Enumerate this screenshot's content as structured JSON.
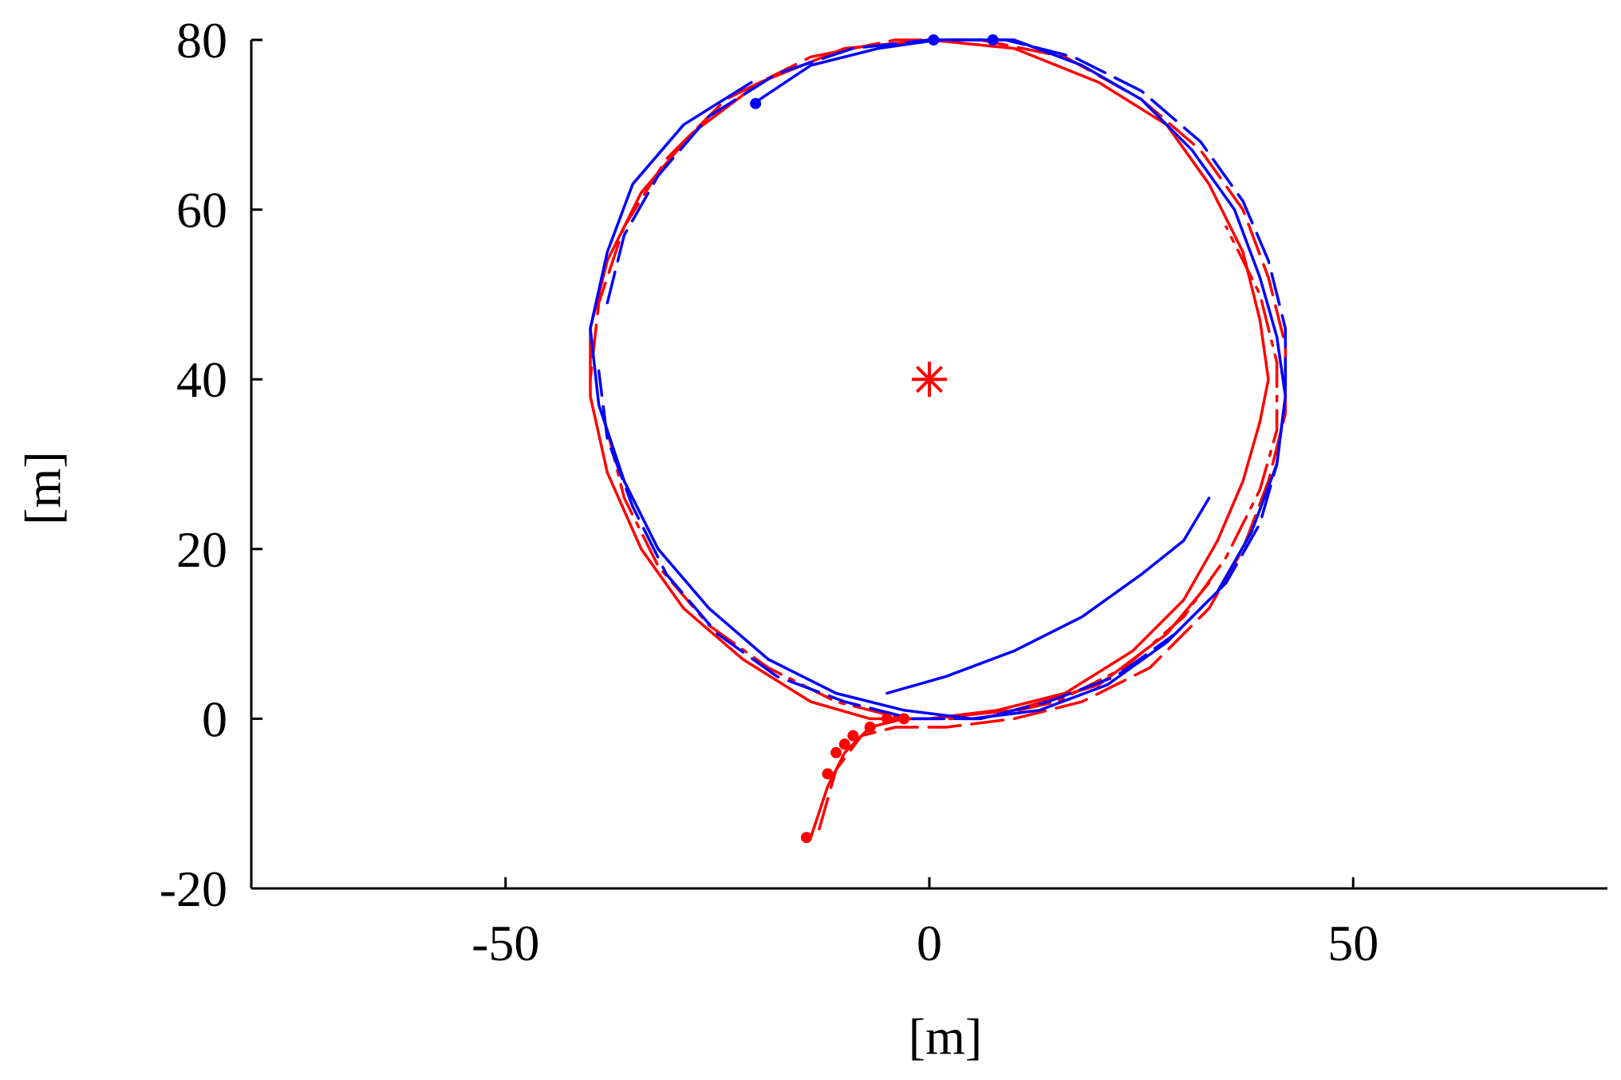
{
  "chart_data": {
    "type": "line",
    "title": "",
    "xlabel": "[m]",
    "ylabel": "[m]",
    "xlim": [
      -80,
      80
    ],
    "ylim": [
      -20,
      80
    ],
    "xticks": [
      -50,
      0,
      50
    ],
    "xtick_labels": [
      "-50",
      "0",
      "50"
    ],
    "yticks": [
      -20,
      0,
      20,
      40,
      60,
      80
    ],
    "ytick_labels": [
      "-20",
      "0",
      "20",
      "40",
      "60",
      "80"
    ],
    "grid": false,
    "legend": "none",
    "colors": {
      "red": "#ff0000",
      "blue": "#0000ff",
      "axis": "#000000"
    },
    "circle_center": [
      0,
      40
    ],
    "circle_radius": 40,
    "center_marker": {
      "x": 0,
      "y": 40,
      "marker": "asterisk",
      "color": "#ff0000"
    },
    "series": [
      {
        "color": "#ff0000",
        "style": "solid",
        "points": [
          [
            -14,
            -14
          ],
          [
            -12,
            -8
          ],
          [
            -10,
            -4
          ],
          [
            -7,
            -1
          ],
          [
            -3,
            0
          ],
          [
            0,
            0
          ],
          [
            8,
            1
          ],
          [
            16,
            3
          ],
          [
            24,
            8
          ],
          [
            30,
            14
          ],
          [
            34,
            21
          ],
          [
            37,
            28
          ],
          [
            39,
            35
          ],
          [
            40,
            40
          ],
          [
            39,
            47
          ],
          [
            37,
            55
          ],
          [
            33,
            63
          ],
          [
            28,
            70
          ],
          [
            20,
            75
          ],
          [
            10,
            79
          ],
          [
            0,
            80
          ],
          [
            -10,
            79
          ],
          [
            -20,
            75
          ],
          [
            -28,
            69
          ],
          [
            -34,
            62
          ],
          [
            -38,
            54
          ],
          [
            -40,
            46
          ],
          [
            -40,
            38
          ],
          [
            -38,
            29
          ],
          [
            -34,
            20
          ],
          [
            -29,
            13
          ],
          [
            -22,
            7
          ],
          [
            -14,
            2
          ],
          [
            -7,
            0
          ],
          [
            0,
            0
          ],
          [
            10,
            1
          ],
          [
            20,
            4
          ],
          [
            28,
            10
          ],
          [
            33,
            16
          ]
        ]
      },
      {
        "color": "#ff0000",
        "style": "dashed",
        "points": [
          [
            -13,
            -13
          ],
          [
            -11,
            -6
          ],
          [
            -8,
            -2
          ],
          [
            -4,
            -1
          ],
          [
            2,
            -1
          ],
          [
            10,
            0
          ],
          [
            18,
            2
          ],
          [
            26,
            6
          ],
          [
            33,
            13
          ],
          [
            37,
            20
          ],
          [
            40,
            28
          ],
          [
            42,
            36
          ],
          [
            42,
            44
          ],
          [
            40,
            52
          ],
          [
            37,
            60
          ],
          [
            32,
            67
          ],
          [
            25,
            73
          ],
          [
            16,
            78
          ],
          [
            6,
            80
          ],
          [
            -4,
            80
          ],
          [
            -14,
            78
          ],
          [
            -24,
            73
          ],
          [
            -31,
            66
          ],
          [
            -36,
            58
          ],
          [
            -39,
            49
          ],
          [
            -40,
            40
          ]
        ]
      },
      {
        "color": "#ff0000",
        "style": "dashdot",
        "points": [
          [
            -38,
            34
          ],
          [
            -36,
            26
          ],
          [
            -32,
            18
          ],
          [
            -26,
            11
          ],
          [
            -19,
            6
          ],
          [
            -11,
            2
          ],
          [
            -3,
            0
          ],
          [
            6,
            0
          ],
          [
            15,
            2
          ],
          [
            23,
            6
          ],
          [
            30,
            12
          ],
          [
            35,
            19
          ],
          [
            39,
            27
          ],
          [
            41,
            34
          ],
          [
            41,
            42
          ],
          [
            39,
            50
          ],
          [
            35,
            58
          ]
        ]
      },
      {
        "color": "#0000ff",
        "style": "solid",
        "points": [
          [
            -20,
            73
          ],
          [
            -14,
            77
          ],
          [
            -6,
            79
          ],
          [
            1,
            80
          ],
          [
            10,
            80
          ],
          [
            18,
            77
          ],
          [
            25,
            73
          ],
          [
            31,
            67
          ],
          [
            36,
            60
          ],
          [
            39,
            52
          ],
          [
            41,
            45
          ],
          [
            42,
            38
          ],
          [
            41,
            30
          ],
          [
            38,
            22
          ],
          [
            34,
            15
          ],
          [
            28,
            9
          ],
          [
            21,
            4
          ],
          [
            13,
            1
          ],
          [
            5,
            0
          ],
          [
            -3,
            1
          ],
          [
            -11,
            3
          ],
          [
            -19,
            7
          ],
          [
            -26,
            13
          ],
          [
            -32,
            20
          ],
          [
            -36,
            28
          ],
          [
            -39,
            37
          ],
          [
            -40,
            46
          ],
          [
            -38,
            55
          ],
          [
            -35,
            63
          ],
          [
            -29,
            70
          ],
          [
            -21,
            75
          ]
        ]
      },
      {
        "color": "#0000ff",
        "style": "dashed",
        "points": [
          [
            -38,
            49
          ],
          [
            -36,
            57
          ],
          [
            -32,
            64
          ],
          [
            -26,
            71
          ],
          [
            -18,
            76
          ],
          [
            -9,
            79
          ],
          [
            0,
            80
          ],
          [
            9,
            80
          ],
          [
            17,
            78
          ],
          [
            25,
            74
          ],
          [
            32,
            68
          ],
          [
            37,
            61
          ],
          [
            40,
            54
          ],
          [
            42,
            46
          ],
          [
            42,
            38
          ],
          [
            41,
            30
          ],
          [
            39,
            23
          ],
          [
            35,
            16
          ],
          [
            29,
            10
          ],
          [
            22,
            5
          ],
          [
            14,
            2
          ],
          [
            6,
            0
          ],
          [
            -2,
            0
          ],
          [
            -10,
            2
          ],
          [
            -18,
            5
          ],
          [
            -25,
            10
          ],
          [
            -31,
            17
          ],
          [
            -35,
            25
          ],
          [
            -38,
            33
          ],
          [
            -39,
            41
          ]
        ]
      },
      {
        "color": "#0000ff",
        "style": "solid",
        "points": [
          [
            33,
            26
          ],
          [
            30,
            21
          ],
          [
            25,
            17
          ],
          [
            18,
            12
          ],
          [
            10,
            8
          ],
          [
            2,
            5
          ],
          [
            -5,
            3
          ]
        ]
      }
    ],
    "marker_points": [
      {
        "x": 0.5,
        "y": 80,
        "color": "#0000ff"
      },
      {
        "x": 7.5,
        "y": 80,
        "color": "#0000ff"
      },
      {
        "x": -20.5,
        "y": 72.5,
        "color": "#0000ff"
      },
      {
        "x": -14.5,
        "y": -14,
        "color": "#ff0000"
      },
      {
        "x": -12,
        "y": -6.5,
        "color": "#ff0000"
      },
      {
        "x": -11,
        "y": -4,
        "color": "#ff0000"
      },
      {
        "x": -10,
        "y": -3,
        "color": "#ff0000"
      },
      {
        "x": -9,
        "y": -2,
        "color": "#ff0000"
      },
      {
        "x": -7,
        "y": -1,
        "color": "#ff0000"
      },
      {
        "x": -5,
        "y": 0,
        "color": "#ff0000"
      },
      {
        "x": -3,
        "y": 0,
        "color": "#ff0000"
      }
    ]
  }
}
